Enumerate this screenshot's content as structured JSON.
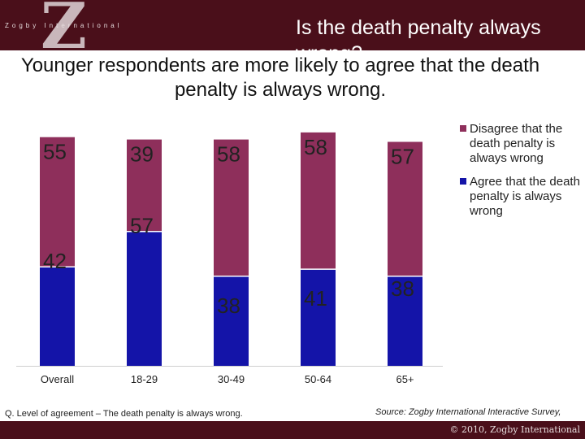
{
  "header": {
    "logo_letter": "Z",
    "logo_text": "Zogby International",
    "title": "Is the death penalty always wrong?"
  },
  "subtitle": "Younger respondents are more likely to agree that the death penalty is always wrong.",
  "colors": {
    "header_bg": "#4a0f1a",
    "disagree": "#8e2f5b",
    "agree": "#1414a8"
  },
  "chart_data": {
    "type": "bar",
    "stacked": true,
    "categories": [
      "Overall",
      "18-29",
      "30-49",
      "50-64",
      "65+"
    ],
    "series": [
      {
        "name": "Agree that the death penalty is always wrong",
        "values": [
          42,
          57,
          38,
          41,
          38
        ],
        "color": "#1414a8"
      },
      {
        "name": "Disagree that the death penalty is always wrong",
        "values": [
          55,
          39,
          58,
          58,
          57
        ],
        "color": "#8e2f5b"
      }
    ],
    "legend_items": [
      {
        "label": "Disagree that the death penalty is always wrong",
        "color": "#8e2f5b"
      },
      {
        "label": "Agree that the death penalty is always wrong",
        "color": "#1414a8"
      }
    ],
    "legend_position": "right",
    "grid": false,
    "ylim": [
      0,
      100
    ]
  },
  "footer": {
    "note": "Q. Level of agreement – The death penalty is always wrong.",
    "source": "Source: Zogby International Interactive Survey,",
    "copyright": "© 2010, Zogby International"
  }
}
